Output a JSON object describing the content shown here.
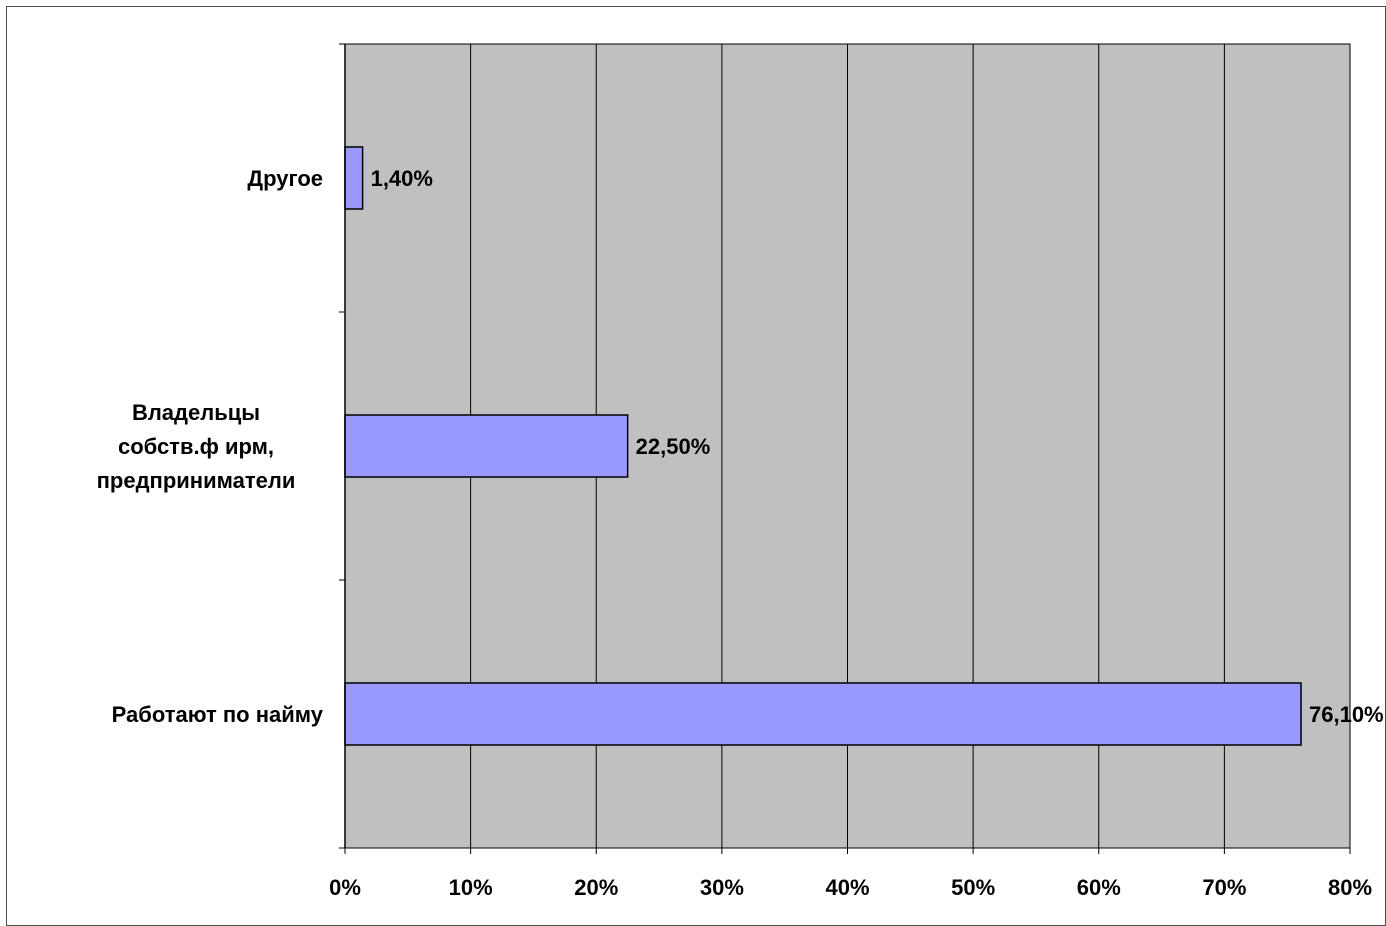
{
  "chart_data": {
    "type": "bar",
    "orientation": "horizontal",
    "categories": [
      [
        "Работают по найму"
      ],
      [
        "Владельцы",
        "собств.ф ирм,",
        "предприниматели"
      ],
      [
        "Другое"
      ]
    ],
    "values": [
      76.1,
      22.5,
      1.4
    ],
    "data_labels": [
      "76,10%",
      "22,50%",
      "1,40%"
    ],
    "x_ticks": [
      "0%",
      "10%",
      "20%",
      "30%",
      "40%",
      "50%",
      "60%",
      "70%",
      "80%"
    ],
    "xlim": [
      0,
      80
    ],
    "title": "",
    "xlabel": "",
    "ylabel": "",
    "grid": "vertical",
    "legend": "none",
    "colors": {
      "bar_fill": "#9999ff",
      "bar_stroke": "#000000",
      "plot_background": "#c0c0c0",
      "grid_line": "#000000"
    }
  }
}
